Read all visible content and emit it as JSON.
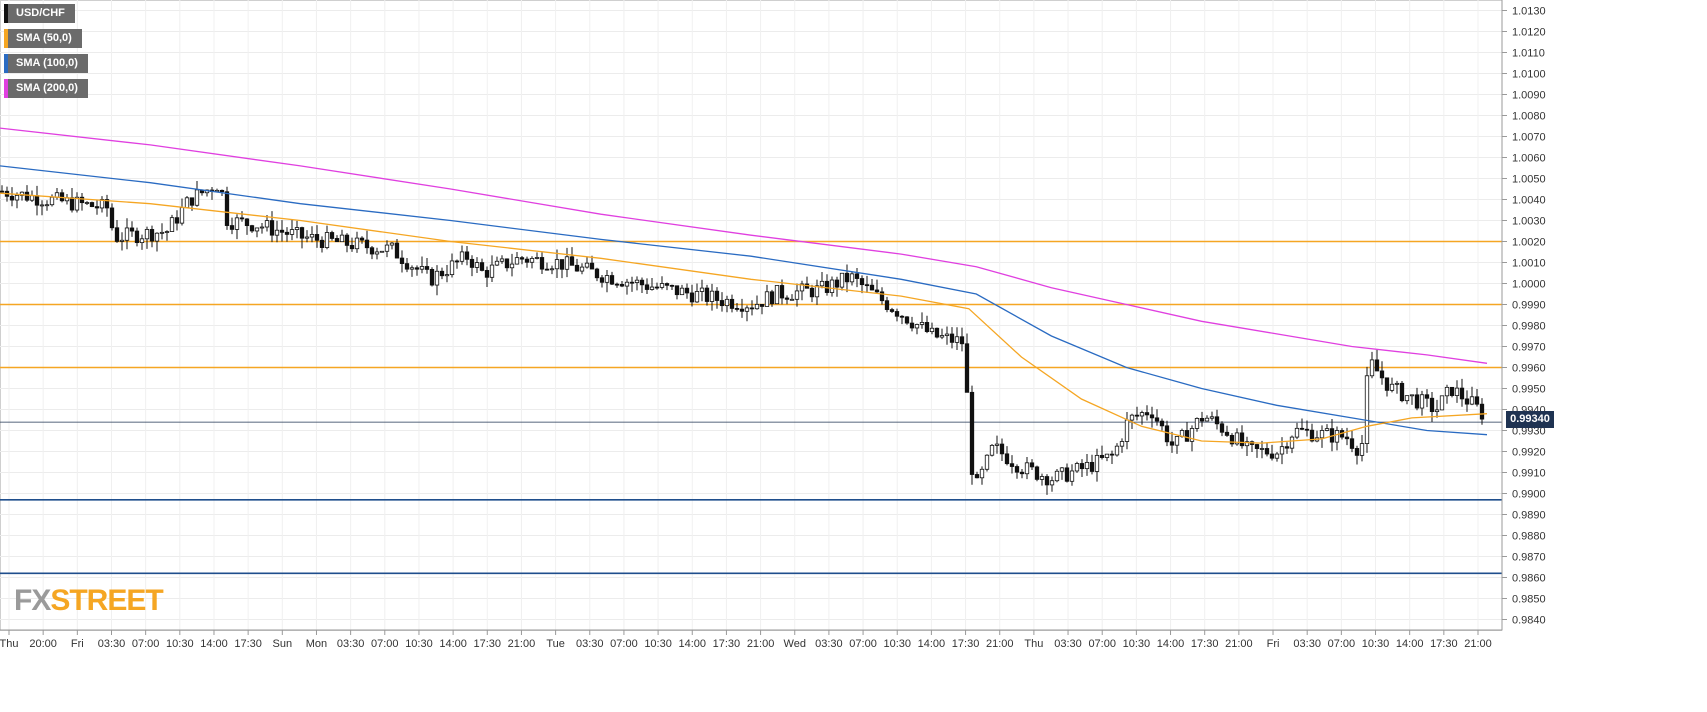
{
  "legend": [
    {
      "label": "USD/CHF",
      "color": "#111111"
    },
    {
      "label": "SMA (50,0)",
      "color": "#f5a623"
    },
    {
      "label": "SMA (100,0)",
      "color": "#2a6bc2"
    },
    {
      "label": "SMA (200,0)",
      "color": "#e040e0"
    }
  ],
  "logo": {
    "fx": "FX",
    "street": "STREET"
  },
  "current_price_label": "0.99340",
  "chart_data": {
    "type": "candlestick",
    "symbol": "USD/CHF",
    "ylim": [
      0.9835,
      1.0135
    ],
    "y_ticks": [
      "1.0130",
      "1.0120",
      "1.0110",
      "1.0100",
      "1.0090",
      "1.0080",
      "1.0070",
      "1.0060",
      "1.0050",
      "1.0040",
      "1.0030",
      "1.0020",
      "1.0010",
      "1.0000",
      "0.9990",
      "0.9980",
      "0.9970",
      "0.9960",
      "0.9950",
      "0.9940",
      "0.9930",
      "0.9920",
      "0.9910",
      "0.9900",
      "0.9890",
      "0.9880",
      "0.9870",
      "0.9860",
      "0.9850",
      "0.9840"
    ],
    "x_ticks": [
      "Thu",
      "20:00",
      "Fri",
      "03:30",
      "07:00",
      "10:30",
      "14:00",
      "17:30",
      "Sun",
      "Mon",
      "03:30",
      "07:00",
      "10:30",
      "14:00",
      "17:30",
      "21:00",
      "Tue",
      "03:30",
      "07:00",
      "10:30",
      "14:00",
      "17:30",
      "21:00",
      "Wed",
      "03:30",
      "07:00",
      "10:30",
      "14:00",
      "17:30",
      "21:00",
      "Thu",
      "03:30",
      "07:00",
      "10:30",
      "14:00",
      "17:30",
      "21:00",
      "Fri",
      "03:30",
      "07:00",
      "10:30",
      "14:00",
      "17:30",
      "21:00"
    ],
    "horizontal_levels": [
      {
        "value": 1.002,
        "color": "#f5a623"
      },
      {
        "value": 0.999,
        "color": "#f5a623"
      },
      {
        "value": 0.996,
        "color": "#f5a623"
      },
      {
        "value": 0.9897,
        "color": "#1f4e8c"
      },
      {
        "value": 0.9862,
        "color": "#1f4e8c"
      }
    ],
    "current_price": 0.9934,
    "price_path": [
      [
        0,
        1.0044
      ],
      [
        0.03,
        1.004
      ],
      [
        0.07,
        1.0036
      ],
      [
        0.075,
        1.0022
      ],
      [
        0.11,
        1.0025
      ],
      [
        0.125,
        1.004
      ],
      [
        0.145,
        1.0048
      ],
      [
        0.15,
        1.003
      ],
      [
        0.17,
        1.0028
      ],
      [
        0.2,
        1.0022
      ],
      [
        0.23,
        1.0019
      ],
      [
        0.26,
        1.0016
      ],
      [
        0.285,
        1.0002
      ],
      [
        0.31,
        1.0013
      ],
      [
        0.32,
        1.0005
      ],
      [
        0.345,
        1.0012
      ],
      [
        0.37,
        1.001
      ],
      [
        0.4,
        1.0004
      ],
      [
        0.43,
        0.9999
      ],
      [
        0.46,
        0.9995
      ],
      [
        0.48,
        0.9992
      ],
      [
        0.5,
        0.999
      ],
      [
        0.515,
        0.9995
      ],
      [
        0.545,
        0.9997
      ],
      [
        0.565,
        1.0003
      ],
      [
        0.58,
        0.9995
      ],
      [
        0.6,
        0.9985
      ],
      [
        0.62,
        0.9975
      ],
      [
        0.64,
        0.9972
      ],
      [
        0.647,
        0.99
      ],
      [
        0.66,
        0.9922
      ],
      [
        0.68,
        0.9912
      ],
      [
        0.7,
        0.9907
      ],
      [
        0.72,
        0.9912
      ],
      [
        0.74,
        0.9918
      ],
      [
        0.75,
        0.9935
      ],
      [
        0.765,
        0.994
      ],
      [
        0.78,
        0.9922
      ],
      [
        0.8,
        0.9937
      ],
      [
        0.815,
        0.993
      ],
      [
        0.83,
        0.992
      ],
      [
        0.85,
        0.992
      ],
      [
        0.86,
        0.993
      ],
      [
        0.88,
        0.9928
      ],
      [
        0.895,
        0.9927
      ],
      [
        0.905,
        0.992
      ],
      [
        0.91,
        0.9963
      ],
      [
        0.925,
        0.995
      ],
      [
        0.94,
        0.9945
      ],
      [
        0.955,
        0.994
      ],
      [
        0.965,
        0.995
      ],
      [
        0.98,
        0.9942
      ],
      [
        0.99,
        0.9935
      ]
    ],
    "sma50_path": [
      [
        0,
        1.0043
      ],
      [
        0.1,
        1.0038
      ],
      [
        0.2,
        1.003
      ],
      [
        0.3,
        1.002
      ],
      [
        0.4,
        1.0012
      ],
      [
        0.5,
        1.0002
      ],
      [
        0.6,
        0.9994
      ],
      [
        0.645,
        0.9988
      ],
      [
        0.68,
        0.9965
      ],
      [
        0.72,
        0.9945
      ],
      [
        0.76,
        0.9932
      ],
      [
        0.8,
        0.9925
      ],
      [
        0.84,
        0.9924
      ],
      [
        0.88,
        0.9926
      ],
      [
        0.91,
        0.9932
      ],
      [
        0.94,
        0.9936
      ],
      [
        0.99,
        0.9938
      ]
    ],
    "sma100_path": [
      [
        0,
        1.0056
      ],
      [
        0.1,
        1.0048
      ],
      [
        0.2,
        1.0038
      ],
      [
        0.3,
        1.003
      ],
      [
        0.4,
        1.0021
      ],
      [
        0.5,
        1.0013
      ],
      [
        0.6,
        1.0002
      ],
      [
        0.65,
        0.9995
      ],
      [
        0.7,
        0.9975
      ],
      [
        0.75,
        0.996
      ],
      [
        0.8,
        0.995
      ],
      [
        0.85,
        0.9942
      ],
      [
        0.9,
        0.9936
      ],
      [
        0.95,
        0.993
      ],
      [
        0.99,
        0.9928
      ]
    ],
    "sma200_path": [
      [
        0,
        1.0074
      ],
      [
        0.1,
        1.0066
      ],
      [
        0.2,
        1.0056
      ],
      [
        0.3,
        1.0045
      ],
      [
        0.4,
        1.0033
      ],
      [
        0.5,
        1.0023
      ],
      [
        0.6,
        1.0014
      ],
      [
        0.65,
        1.0008
      ],
      [
        0.7,
        0.9998
      ],
      [
        0.75,
        0.999
      ],
      [
        0.8,
        0.9982
      ],
      [
        0.85,
        0.9976
      ],
      [
        0.9,
        0.997
      ],
      [
        0.95,
        0.9966
      ],
      [
        0.99,
        0.9962
      ]
    ],
    "grid": true
  }
}
